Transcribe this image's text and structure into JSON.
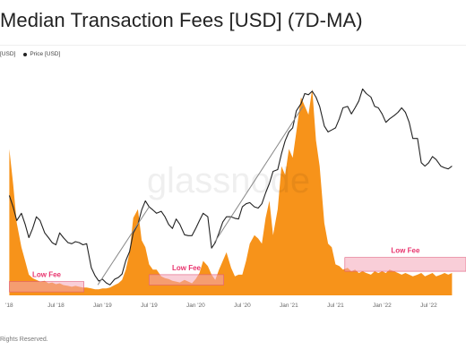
{
  "title_text": "Median Transaction Fees [USD] (7D-MA)",
  "legend": {
    "series1_label": "[USD]",
    "series2_label": "Price [USD]"
  },
  "watermark_text": "glassnode",
  "footer_text": "Rights Reserved.",
  "colors": {
    "fee_fill": "#f7931a",
    "price_line": "#222222",
    "lowfee_box": "#f4a5b8",
    "lowfee_text": "#e8336d",
    "trend_line": "#888888"
  },
  "chart_data": {
    "type": "area",
    "x_tick_labels": [
      "'18",
      "Jul '18",
      "Jan '19",
      "Jul '19",
      "Jan '20",
      "Jul '20",
      "Jan '21",
      "Jul '21",
      "Jan '22",
      "Jul '22"
    ],
    "series": [
      {
        "name": "[USD]",
        "type": "area",
        "x": [
          2018.0,
          2018.04,
          2018.08,
          2018.13,
          2018.17,
          2018.21,
          2018.25,
          2018.29,
          2018.33,
          2018.38,
          2018.42,
          2018.46,
          2018.5,
          2018.54,
          2018.58,
          2018.63,
          2018.67,
          2018.71,
          2018.75,
          2018.79,
          2018.83,
          2018.88,
          2018.92,
          2018.96,
          2019.0,
          2019.04,
          2019.08,
          2019.13,
          2019.17,
          2019.21,
          2019.25,
          2019.29,
          2019.33,
          2019.38,
          2019.42,
          2019.46,
          2019.5,
          2019.54,
          2019.58,
          2019.63,
          2019.67,
          2019.71,
          2019.75,
          2019.79,
          2019.83,
          2019.88,
          2019.92,
          2019.96,
          2020.0,
          2020.04,
          2020.08,
          2020.13,
          2020.17,
          2020.21,
          2020.25,
          2020.29,
          2020.33,
          2020.38,
          2020.42,
          2020.46,
          2020.5,
          2020.54,
          2020.58,
          2020.63,
          2020.67,
          2020.71,
          2020.75,
          2020.79,
          2020.83,
          2020.88,
          2020.92,
          2020.96,
          2021.0,
          2021.04,
          2021.08,
          2021.13,
          2021.17,
          2021.21,
          2021.25,
          2021.29,
          2021.33,
          2021.38,
          2021.42,
          2021.46,
          2021.5,
          2021.54,
          2021.58,
          2021.63,
          2021.67,
          2021.71,
          2021.75,
          2021.79,
          2021.83,
          2021.88,
          2021.92,
          2021.96,
          2022.0,
          2022.04,
          2022.08,
          2022.13,
          2022.17,
          2022.21,
          2022.25,
          2022.29,
          2022.33,
          2022.38,
          2022.42,
          2022.46,
          2022.5,
          2022.54,
          2022.58,
          2022.63,
          2022.67,
          2022.71,
          2022.75
        ],
        "y": [
          0.85,
          0.65,
          0.42,
          0.28,
          0.2,
          0.12,
          0.1,
          0.09,
          0.08,
          0.085,
          0.07,
          0.075,
          0.065,
          0.07,
          0.06,
          0.055,
          0.05,
          0.055,
          0.05,
          0.045,
          0.045,
          0.04,
          0.035,
          0.035,
          0.04,
          0.04,
          0.045,
          0.06,
          0.07,
          0.09,
          0.15,
          0.25,
          0.45,
          0.5,
          0.32,
          0.28,
          0.18,
          0.15,
          0.15,
          0.11,
          0.1,
          0.095,
          0.085,
          0.08,
          0.075,
          0.09,
          0.08,
          0.07,
          0.095,
          0.13,
          0.2,
          0.17,
          0.12,
          0.09,
          0.15,
          0.2,
          0.25,
          0.16,
          0.11,
          0.12,
          0.12,
          0.2,
          0.3,
          0.35,
          0.33,
          0.3,
          0.45,
          0.55,
          0.35,
          0.5,
          0.75,
          0.7,
          0.85,
          0.8,
          0.95,
          1.15,
          1.1,
          1.05,
          1.2,
          0.9,
          0.75,
          0.42,
          0.3,
          0.28,
          0.18,
          0.17,
          0.15,
          0.16,
          0.14,
          0.15,
          0.13,
          0.14,
          0.13,
          0.12,
          0.14,
          0.13,
          0.14,
          0.13,
          0.15,
          0.14,
          0.13,
          0.12,
          0.13,
          0.12,
          0.11,
          0.12,
          0.13,
          0.11,
          0.12,
          0.13,
          0.11,
          0.12,
          0.13,
          0.12,
          0.13
        ]
      },
      {
        "name": "Price [USD]",
        "type": "line",
        "x": [
          2018.0,
          2018.04,
          2018.08,
          2018.13,
          2018.17,
          2018.21,
          2018.25,
          2018.29,
          2018.33,
          2018.38,
          2018.42,
          2018.46,
          2018.5,
          2018.54,
          2018.58,
          2018.63,
          2018.67,
          2018.71,
          2018.75,
          2018.79,
          2018.83,
          2018.88,
          2018.92,
          2018.96,
          2019.0,
          2019.04,
          2019.08,
          2019.13,
          2019.17,
          2019.21,
          2019.25,
          2019.29,
          2019.33,
          2019.38,
          2019.42,
          2019.46,
          2019.5,
          2019.54,
          2019.58,
          2019.63,
          2019.67,
          2019.71,
          2019.75,
          2019.79,
          2019.83,
          2019.88,
          2019.92,
          2019.96,
          2020.0,
          2020.04,
          2020.08,
          2020.13,
          2020.17,
          2020.21,
          2020.25,
          2020.29,
          2020.33,
          2020.38,
          2020.42,
          2020.46,
          2020.5,
          2020.54,
          2020.58,
          2020.63,
          2020.67,
          2020.71,
          2020.75,
          2020.79,
          2020.83,
          2020.88,
          2020.92,
          2020.96,
          2021.0,
          2021.04,
          2021.08,
          2021.13,
          2021.17,
          2021.21,
          2021.25,
          2021.29,
          2021.33,
          2021.38,
          2021.42,
          2021.46,
          2021.5,
          2021.54,
          2021.58,
          2021.63,
          2021.67,
          2021.71,
          2021.75,
          2021.79,
          2021.83,
          2021.88,
          2021.92,
          2021.96,
          2022.0,
          2022.04,
          2022.08,
          2022.13,
          2022.17,
          2022.21,
          2022.25,
          2022.29,
          2022.33,
          2022.38,
          2022.42,
          2022.46,
          2022.5,
          2022.54,
          2022.58,
          2022.63,
          2022.67,
          2022.71,
          2022.75
        ],
        "y": [
          13000,
          11000,
          9000,
          10000,
          8500,
          7000,
          8000,
          9500,
          9000,
          7500,
          7000,
          6500,
          6300,
          7500,
          7000,
          6500,
          6400,
          6600,
          6500,
          6300,
          6400,
          4500,
          4000,
          3700,
          3800,
          3600,
          3500,
          3800,
          3900,
          4100,
          5000,
          5700,
          7500,
          8500,
          10500,
          12000,
          11000,
          10500,
          10000,
          10300,
          9500,
          8500,
          8000,
          9200,
          8500,
          7300,
          7200,
          7200,
          8000,
          9000,
          10000,
          9500,
          6000,
          6500,
          7500,
          8800,
          9500,
          9500,
          9300,
          9200,
          11000,
          11500,
          11700,
          11000,
          10800,
          11500,
          13500,
          15500,
          18500,
          19000,
          24000,
          29000,
          33000,
          35000,
          45000,
          50000,
          58000,
          57000,
          60000,
          55000,
          48000,
          36000,
          33000,
          34000,
          35000,
          40000,
          47000,
          48000,
          43000,
          47000,
          52000,
          62000,
          58000,
          55000,
          48000,
          47000,
          43000,
          38000,
          40000,
          42000,
          44000,
          47000,
          44000,
          38000,
          30000,
          30000,
          21000,
          20000,
          21000,
          23000,
          22000,
          20000,
          19500,
          19200,
          20000
        ]
      }
    ],
    "annotations": [
      {
        "label": "Low Fee",
        "x_range": [
          2018.0,
          2018.8
        ],
        "y_range": [
          0.02,
          0.08
        ]
      },
      {
        "label": "Low Fee",
        "x_range": [
          2019.5,
          2020.3
        ],
        "y_range": [
          0.06,
          0.12
        ]
      },
      {
        "label": "Low Fee",
        "x_range": [
          2021.6,
          2022.9
        ],
        "y_range": [
          0.14,
          0.22
        ]
      }
    ],
    "trend_lines": [
      {
        "from": [
          2018.95,
          3500
        ],
        "to": [
          2019.5,
          11000
        ]
      },
      {
        "from": [
          2020.2,
          6500
        ],
        "to": [
          2021.15,
          48000
        ]
      }
    ]
  }
}
